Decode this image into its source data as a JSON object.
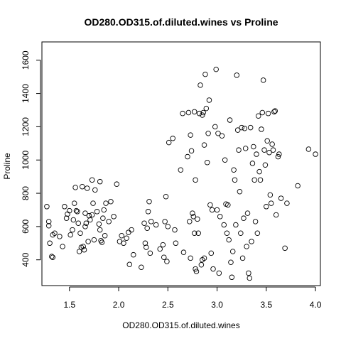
{
  "chart_data": {
    "type": "scatter",
    "title": "OD280.OD315.of.diluted.wines vs Proline",
    "xlabel": "OD280.OD315.of.diluted.wines",
    "ylabel": "Proline",
    "xlim": [
      1.22,
      4.05
    ],
    "ylim": [
      245,
      1710
    ],
    "xticks": [
      1.5,
      2.0,
      2.5,
      3.0,
      3.5,
      4.0
    ],
    "yticks": [
      400,
      600,
      800,
      1000,
      1200,
      1400,
      1600
    ],
    "xtick_labels": [
      "1.5",
      "2.0",
      "2.5",
      "3.0",
      "3.5",
      "4.0"
    ],
    "ytick_labels": [
      "400",
      "600",
      "800",
      "1000",
      "1200",
      "1400",
      "1600"
    ],
    "grid": false,
    "legend": "none",
    "points": [
      [
        1.27,
        720
      ],
      [
        1.29,
        630
      ],
      [
        1.29,
        605
      ],
      [
        1.3,
        500
      ],
      [
        1.32,
        420
      ],
      [
        1.33,
        415
      ],
      [
        1.33,
        550
      ],
      [
        1.35,
        560
      ],
      [
        1.4,
        540
      ],
      [
        1.43,
        480
      ],
      [
        1.45,
        720
      ],
      [
        1.47,
        650
      ],
      [
        1.48,
        675
      ],
      [
        1.5,
        695
      ],
      [
        1.51,
        550
      ],
      [
        1.53,
        580
      ],
      [
        1.54,
        640
      ],
      [
        1.55,
        740
      ],
      [
        1.56,
        835
      ],
      [
        1.57,
        695
      ],
      [
        1.58,
        690
      ],
      [
        1.59,
        620
      ],
      [
        1.6,
        450
      ],
      [
        1.61,
        560
      ],
      [
        1.62,
        475
      ],
      [
        1.63,
        840
      ],
      [
        1.64,
        480
      ],
      [
        1.65,
        460
      ],
      [
        1.66,
        600
      ],
      [
        1.66,
        680
      ],
      [
        1.67,
        620
      ],
      [
        1.68,
        830
      ],
      [
        1.69,
        510
      ],
      [
        1.7,
        665
      ],
      [
        1.71,
        640
      ],
      [
        1.73,
        880
      ],
      [
        1.73,
        670
      ],
      [
        1.74,
        740
      ],
      [
        1.75,
        520
      ],
      [
        1.76,
        820
      ],
      [
        1.78,
        690
      ],
      [
        1.8,
        615
      ],
      [
        1.81,
        870
      ],
      [
        1.81,
        580
      ],
      [
        1.82,
        515
      ],
      [
        1.83,
        505
      ],
      [
        1.84,
        650
      ],
      [
        1.85,
        700
      ],
      [
        1.86,
        545
      ],
      [
        1.87,
        740
      ],
      [
        1.9,
        630
      ],
      [
        1.92,
        750
      ],
      [
        1.95,
        660
      ],
      [
        1.98,
        855
      ],
      [
        2.01,
        510
      ],
      [
        2.03,
        545
      ],
      [
        2.05,
        500
      ],
      [
        2.08,
        530
      ],
      [
        2.1,
        565
      ],
      [
        2.11,
        372
      ],
      [
        2.13,
        580
      ],
      [
        2.15,
        430
      ],
      [
        2.23,
        355
      ],
      [
        2.26,
        620
      ],
      [
        2.27,
        500
      ],
      [
        2.28,
        475
      ],
      [
        2.29,
        590
      ],
      [
        2.3,
        690
      ],
      [
        2.31,
        750
      ],
      [
        2.32,
        440
      ],
      [
        2.33,
        630
      ],
      [
        2.38,
        610
      ],
      [
        2.42,
        465
      ],
      [
        2.45,
        490
      ],
      [
        2.46,
        415
      ],
      [
        2.47,
        630
      ],
      [
        2.48,
        780
      ],
      [
        2.49,
        390
      ],
      [
        2.5,
        600
      ],
      [
        2.51,
        1105
      ],
      [
        2.55,
        1130
      ],
      [
        2.57,
        580
      ],
      [
        2.58,
        500
      ],
      [
        2.63,
        940
      ],
      [
        2.65,
        1280
      ],
      [
        2.66,
        445
      ],
      [
        2.7,
        1020
      ],
      [
        2.71,
        1285
      ],
      [
        2.72,
        630
      ],
      [
        2.73,
        410
      ],
      [
        2.73,
        1150
      ],
      [
        2.74,
        1055
      ],
      [
        2.75,
        680
      ],
      [
        2.76,
        660
      ],
      [
        2.77,
        1290
      ],
      [
        2.77,
        560
      ],
      [
        2.78,
        345
      ],
      [
        2.78,
        880
      ],
      [
        2.79,
        330
      ],
      [
        2.8,
        645
      ],
      [
        2.81,
        560
      ],
      [
        2.82,
        1280
      ],
      [
        2.83,
        1450
      ],
      [
        2.84,
        370
      ],
      [
        2.85,
        1270
      ],
      [
        2.85,
        400
      ],
      [
        2.86,
        1285
      ],
      [
        2.87,
        1090
      ],
      [
        2.87,
        410
      ],
      [
        2.88,
        1515
      ],
      [
        2.89,
        1310
      ],
      [
        2.9,
        985
      ],
      [
        2.91,
        1160
      ],
      [
        2.92,
        1360
      ],
      [
        2.93,
        730
      ],
      [
        2.94,
        440
      ],
      [
        2.95,
        700
      ],
      [
        2.96,
        345
      ],
      [
        2.98,
        1200
      ],
      [
        2.99,
        1545
      ],
      [
        3.0,
        700
      ],
      [
        3.01,
        1160
      ],
      [
        3.02,
        320
      ],
      [
        3.03,
        660
      ],
      [
        3.05,
        1145
      ],
      [
        3.07,
        610
      ],
      [
        3.08,
        1000
      ],
      [
        3.09,
        735
      ],
      [
        3.1,
        560
      ],
      [
        3.11,
        730
      ],
      [
        3.12,
        520
      ],
      [
        3.13,
        1240
      ],
      [
        3.14,
        385
      ],
      [
        3.15,
        295
      ],
      [
        3.16,
        450
      ],
      [
        3.17,
        940
      ],
      [
        3.18,
        880
      ],
      [
        3.19,
        610
      ],
      [
        3.2,
        1510
      ],
      [
        3.21,
        1180
      ],
      [
        3.22,
        1060
      ],
      [
        3.23,
        810
      ],
      [
        3.24,
        560
      ],
      [
        3.25,
        1195
      ],
      [
        3.26,
        410
      ],
      [
        3.27,
        650
      ],
      [
        3.28,
        1190
      ],
      [
        3.29,
        1070
      ],
      [
        3.3,
        480
      ],
      [
        3.31,
        680
      ],
      [
        3.32,
        320
      ],
      [
        3.33,
        290
      ],
      [
        3.34,
        1195
      ],
      [
        3.35,
        510
      ],
      [
        3.36,
        980
      ],
      [
        3.37,
        1080
      ],
      [
        3.38,
        880
      ],
      [
        3.39,
        630
      ],
      [
        3.4,
        1035
      ],
      [
        3.41,
        560
      ],
      [
        3.42,
        1265
      ],
      [
        3.43,
        930
      ],
      [
        3.44,
        880
      ],
      [
        3.45,
        1185
      ],
      [
        3.46,
        1285
      ],
      [
        3.47,
        1480
      ],
      [
        3.48,
        1060
      ],
      [
        3.49,
        970
      ],
      [
        3.5,
        720
      ],
      [
        3.51,
        1115
      ],
      [
        3.52,
        1280
      ],
      [
        3.53,
        1045
      ],
      [
        3.54,
        790
      ],
      [
        3.55,
        740
      ],
      [
        3.56,
        1095
      ],
      [
        3.57,
        1060
      ],
      [
        3.58,
        1290
      ],
      [
        3.59,
        1295
      ],
      [
        3.6,
        670
      ],
      [
        3.62,
        1020
      ],
      [
        3.63,
        1035
      ],
      [
        3.65,
        770
      ],
      [
        3.69,
        470
      ],
      [
        3.71,
        740
      ],
      [
        3.82,
        845
      ],
      [
        3.93,
        1065
      ],
      [
        4.0,
        1035
      ]
    ]
  }
}
